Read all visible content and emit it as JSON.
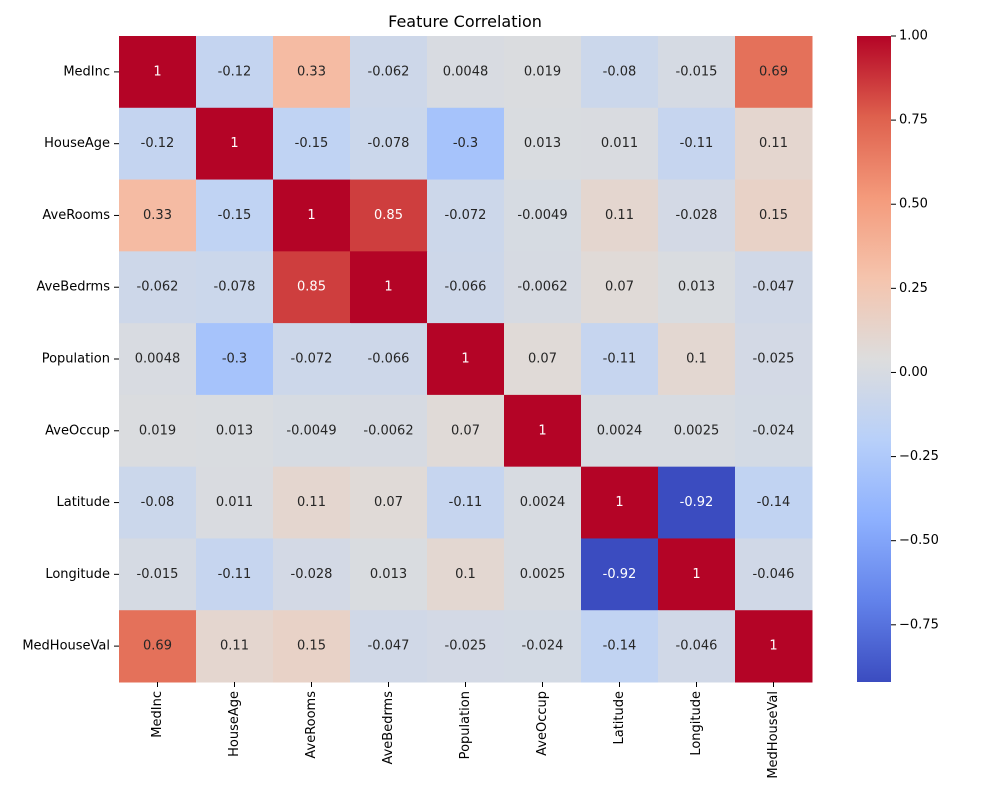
{
  "chart_data": {
    "type": "heatmap",
    "title": "Feature Correlation",
    "xlabel": "",
    "ylabel": "",
    "variables": [
      "MedInc",
      "HouseAge",
      "AveRooms",
      "AveBedrms",
      "Population",
      "AveOccup",
      "Latitude",
      "Longitude",
      "MedHouseVal"
    ],
    "values": [
      [
        1,
        -0.12,
        0.33,
        -0.062,
        0.0048,
        0.019,
        -0.08,
        -0.015,
        0.69
      ],
      [
        -0.12,
        1,
        -0.15,
        -0.078,
        -0.3,
        0.013,
        0.011,
        -0.11,
        0.11
      ],
      [
        0.33,
        -0.15,
        1,
        0.85,
        -0.072,
        -0.0049,
        0.11,
        -0.028,
        0.15
      ],
      [
        -0.062,
        -0.078,
        0.85,
        1,
        -0.066,
        -0.0062,
        0.07,
        0.013,
        -0.047
      ],
      [
        0.0048,
        -0.3,
        -0.072,
        -0.066,
        1,
        0.07,
        -0.11,
        0.1,
        -0.025
      ],
      [
        0.019,
        0.013,
        -0.0049,
        -0.0062,
        0.07,
        1,
        0.0024,
        0.0025,
        -0.024
      ],
      [
        -0.08,
        0.011,
        0.11,
        0.07,
        -0.11,
        0.0024,
        1,
        -0.92,
        -0.14
      ],
      [
        -0.015,
        -0.11,
        -0.028,
        0.013,
        0.1,
        0.0025,
        -0.92,
        1,
        -0.046
      ],
      [
        0.69,
        0.11,
        0.15,
        -0.047,
        -0.025,
        -0.024,
        -0.14,
        -0.046,
        1
      ]
    ],
    "colormap": "coolwarm",
    "vmin": -0.92,
    "vmax": 1.0,
    "colorbar_ticks": [
      1.0,
      0.75,
      0.5,
      0.25,
      0.0,
      -0.25,
      -0.5,
      -0.75
    ],
    "colorbar_tick_labels": [
      "1.00",
      "0.75",
      "0.50",
      "0.25",
      "0.00",
      "−0.25",
      "−0.50",
      "−0.75"
    ],
    "annotated": true,
    "grid": false,
    "legend": "colorbar-right",
    "x_tick_rotation": "vertical"
  }
}
